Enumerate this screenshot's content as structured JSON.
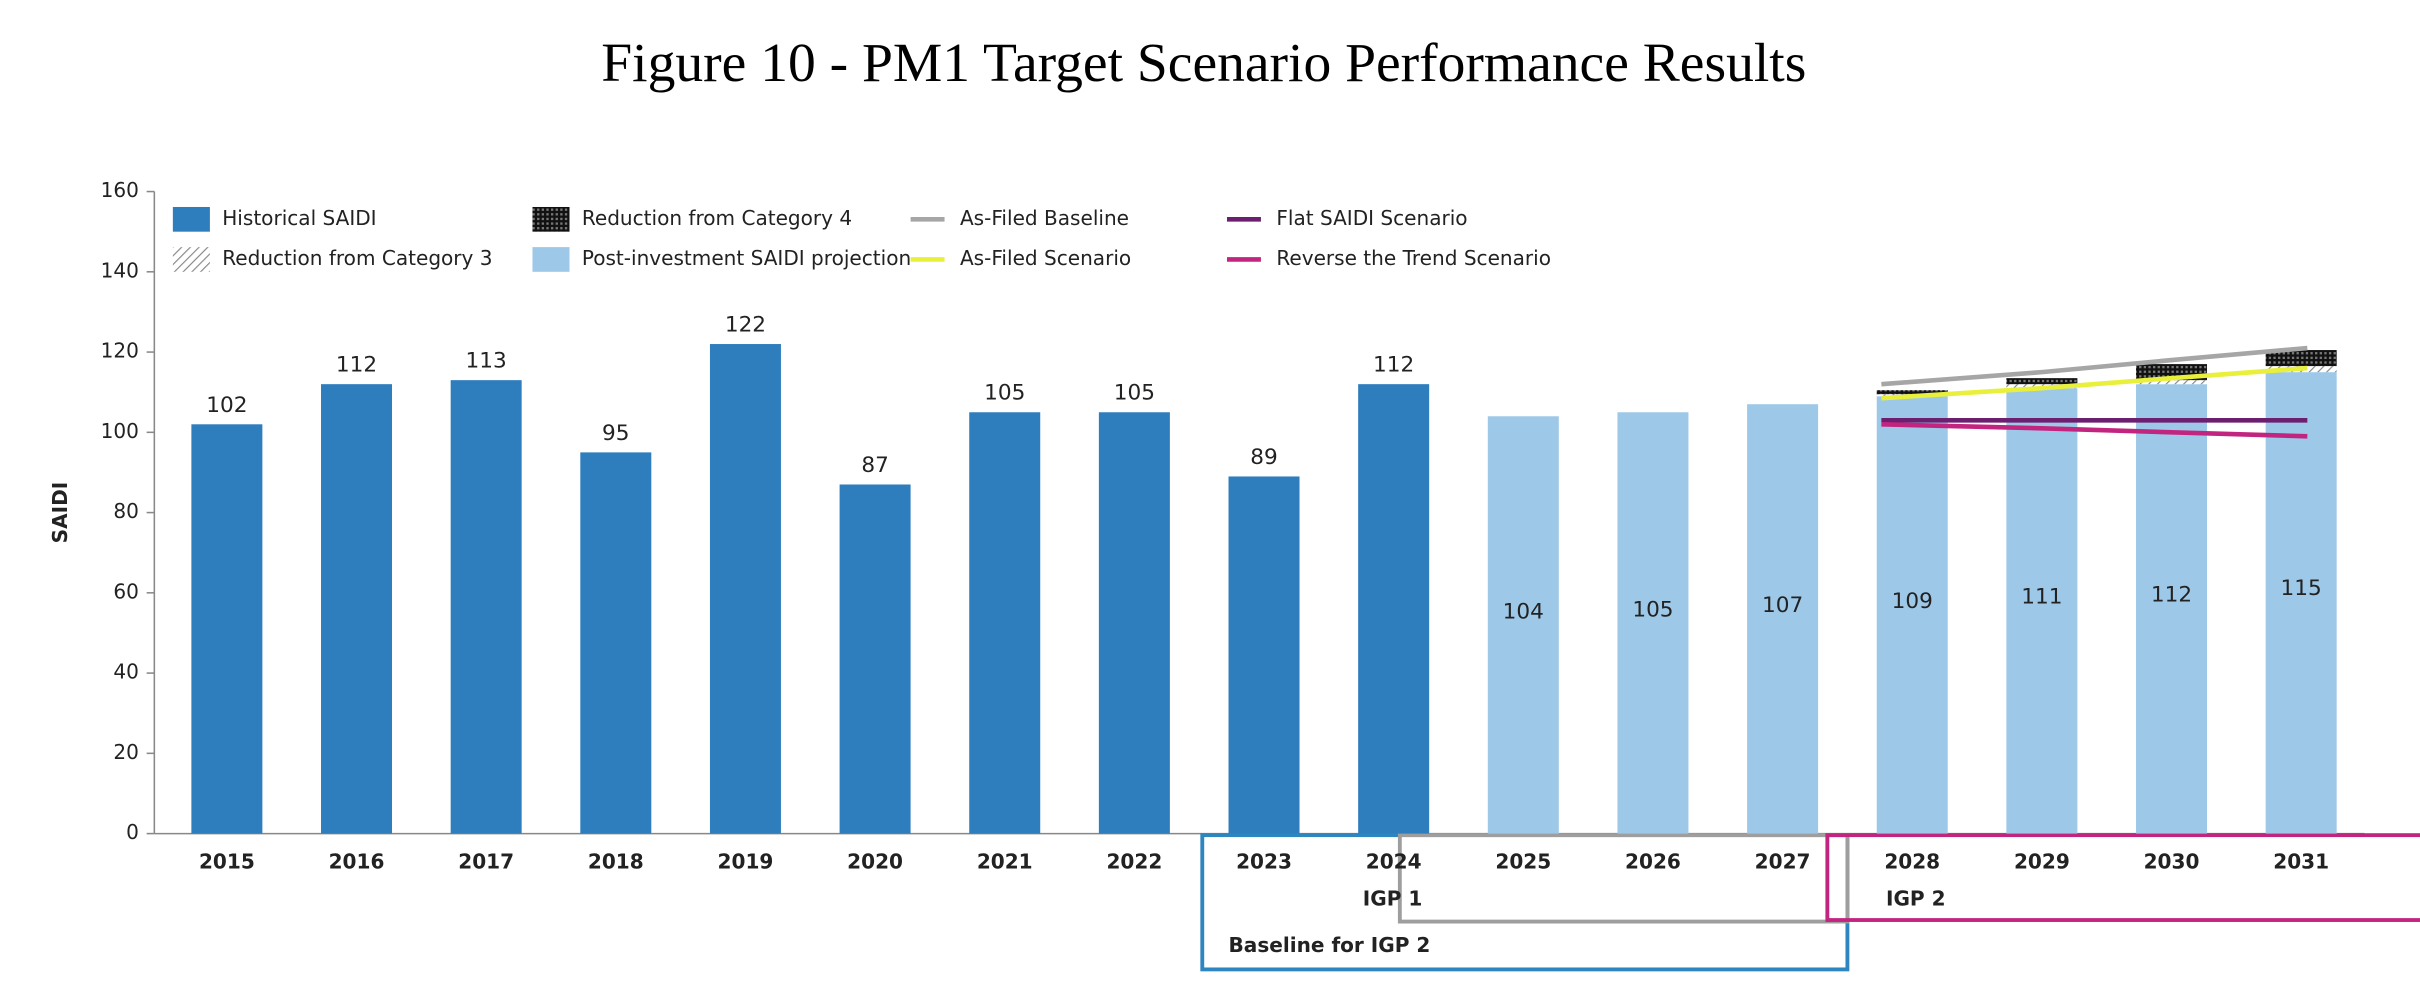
{
  "chart_data": {
    "type": "bar",
    "title": "Figure 10 - PM1 Target Scenario Performance Results",
    "y_label": "SAIDI",
    "categories": [
      "2015",
      "2016",
      "2017",
      "2018",
      "2019",
      "2020",
      "2021",
      "2022",
      "2023",
      "2024",
      "2025",
      "2026",
      "2027",
      "2028",
      "2029",
      "2030",
      "2031"
    ],
    "ylim": [
      0,
      160
    ],
    "yticks": [
      0,
      20,
      40,
      60,
      80,
      100,
      120,
      140,
      160
    ],
    "grid": false,
    "legend": "top-left",
    "series": [
      {
        "name": "Historical SAIDI",
        "type": "bar",
        "color": "#2e7dbd",
        "label_position": "above",
        "values": [
          102,
          112,
          113,
          95,
          122,
          87,
          105,
          105,
          89,
          112,
          null,
          null,
          null,
          null,
          null,
          null,
          null
        ]
      },
      {
        "name": "Reduction from Category 3",
        "type": "bar",
        "stack": true,
        "hatch": "light",
        "color": "#9a9a9a",
        "values": [
          null,
          null,
          null,
          null,
          null,
          null,
          null,
          null,
          null,
          null,
          null,
          null,
          null,
          0.5,
          1,
          1,
          1.5
        ]
      },
      {
        "name": "Reduction from Category 4",
        "type": "bar",
        "stack": true,
        "hatch": "dark",
        "color": "#1e1e1e",
        "values": [
          null,
          null,
          null,
          null,
          null,
          null,
          null,
          null,
          null,
          null,
          null,
          null,
          null,
          1,
          1.5,
          4,
          4
        ]
      },
      {
        "name": "Post-investment SAIDI projection",
        "type": "bar",
        "base": true,
        "color": "#9ec8e8",
        "label_position": "inside",
        "values": [
          null,
          null,
          null,
          null,
          null,
          null,
          null,
          null,
          null,
          null,
          104,
          105,
          107,
          109,
          111,
          112,
          115
        ]
      },
      {
        "name": "As-Filed Baseline",
        "type": "line",
        "color": "#a6a6a6",
        "values": [
          null,
          null,
          null,
          null,
          null,
          null,
          null,
          null,
          null,
          null,
          null,
          null,
          null,
          112,
          115,
          118,
          121
        ]
      },
      {
        "name": "As-Filed Scenario",
        "type": "line",
        "color": "#e8f03c",
        "values": [
          null,
          null,
          null,
          null,
          null,
          null,
          null,
          null,
          null,
          null,
          null,
          null,
          null,
          108.5,
          111,
          113.5,
          116
        ]
      },
      {
        "name": "Flat SAIDI Scenario",
        "type": "line",
        "color": "#6b1f6e",
        "values": [
          null,
          null,
          null,
          null,
          null,
          null,
          null,
          null,
          null,
          null,
          null,
          null,
          null,
          103,
          103,
          103,
          103
        ]
      },
      {
        "name": "Reverse the Trend Scenario",
        "type": "line",
        "color": "#c2257f",
        "values": [
          null,
          null,
          null,
          null,
          null,
          null,
          null,
          null,
          null,
          null,
          null,
          null,
          null,
          102,
          101,
          100,
          99
        ]
      }
    ],
    "groups": [
      {
        "label": "Baseline for IGP 2",
        "color": "#2e86c1"
      },
      {
        "label": "IGP 1",
        "color": "#9e9e9e"
      },
      {
        "label": "IGP 2",
        "color": "#c2257f"
      }
    ]
  }
}
